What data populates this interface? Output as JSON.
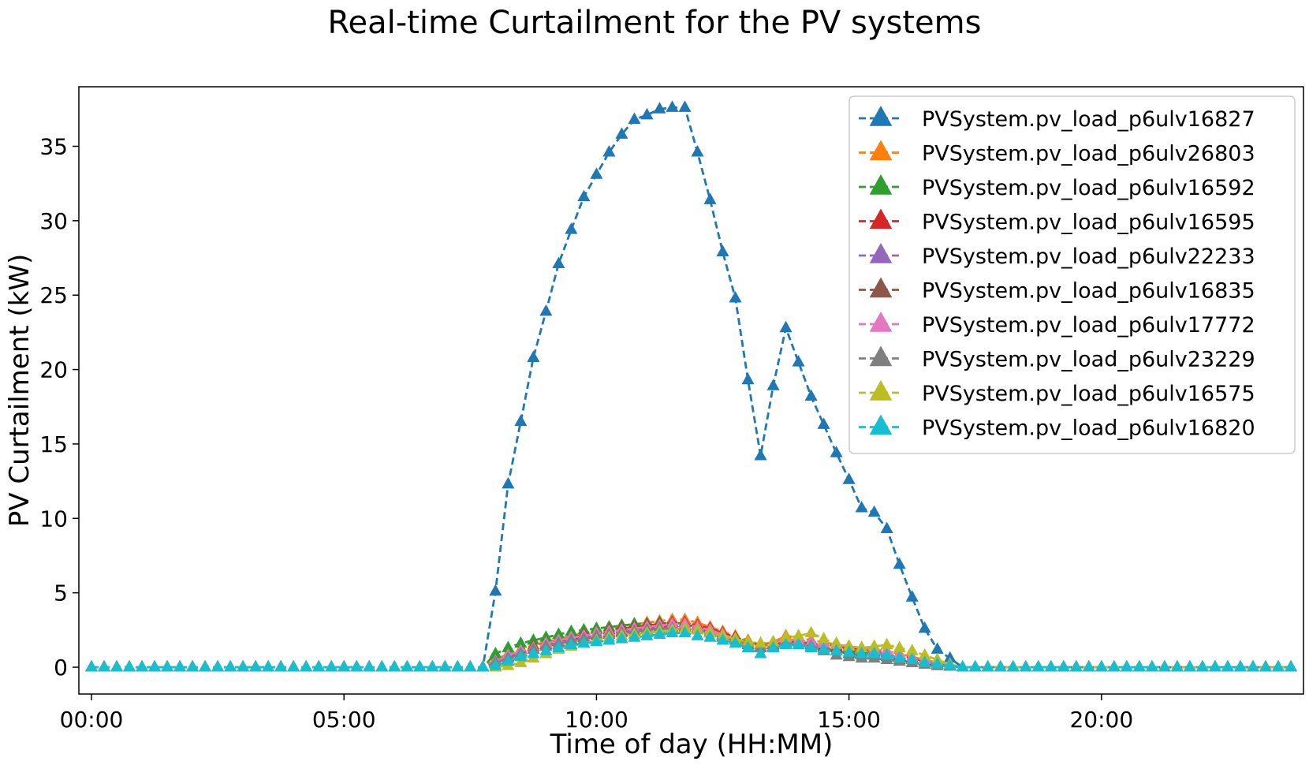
{
  "chart_data": {
    "type": "line",
    "title": "Real-time Curtailment for the PV systems",
    "xlabel": "Time of day (HH:MM)",
    "ylabel": "PV Curtailment (kW)",
    "xlim": [
      -0.25,
      24.0
    ],
    "ylim": [
      -1.8,
      39.0
    ],
    "x_interval_hours": 0.25,
    "x_count": 96,
    "xticks": [
      {
        "value": 0,
        "label": "00:00"
      },
      {
        "value": 5,
        "label": "05:00"
      },
      {
        "value": 10,
        "label": "10:00"
      },
      {
        "value": 15,
        "label": "15:00"
      },
      {
        "value": 20,
        "label": "20:00"
      }
    ],
    "yticks": [
      {
        "value": 0,
        "label": "0"
      },
      {
        "value": 5,
        "label": "5"
      },
      {
        "value": 10,
        "label": "10"
      },
      {
        "value": 15,
        "label": "15"
      },
      {
        "value": 20,
        "label": "20"
      },
      {
        "value": 25,
        "label": "25"
      },
      {
        "value": 30,
        "label": "30"
      },
      {
        "value": 35,
        "label": "35"
      }
    ],
    "grid": false,
    "legend_position": "top-right",
    "marker": "triangle-up",
    "line_style": "dashed",
    "series": [
      {
        "name": "PVSystem.pv_load_p6ulv16827",
        "color": "#1f77b4",
        "active_start_index": 31,
        "active_values": [
          0,
          5.1,
          12.3,
          16.5,
          20.8,
          23.9,
          27.1,
          29.4,
          31.6,
          33.1,
          34.6,
          35.8,
          36.8,
          37.1,
          37.5,
          37.6,
          37.6,
          34.6,
          31.4,
          27.9,
          24.8,
          19.3,
          14.2,
          18.9,
          22.8,
          20.5,
          18.2,
          16.3,
          14.4,
          12.6,
          10.7,
          10.4,
          9.3,
          6.9,
          4.7,
          2.6,
          1.2,
          0.6,
          0
        ]
      },
      {
        "name": "PVSystem.pv_load_p6ulv26803",
        "color": "#ff7f0e",
        "active_start_index": 31,
        "active_values": [
          0,
          0.5,
          0.9,
          1.2,
          1.5,
          1.7,
          1.9,
          2.1,
          2.3,
          2.5,
          2.6,
          2.8,
          2.9,
          3.0,
          3.1,
          3.2,
          3.2,
          3.0,
          2.7,
          2.4,
          2.1,
          1.8,
          1.5,
          1.7,
          2.1,
          2.0,
          1.8,
          1.7,
          1.5,
          1.4,
          1.3,
          1.2,
          1.1,
          0.9,
          0.7,
          0.5,
          0.3,
          0.1,
          0
        ]
      },
      {
        "name": "PVSystem.pv_load_p6ulv16592",
        "color": "#2ca02c",
        "active_start_index": 31,
        "active_values": [
          0,
          0.9,
          1.3,
          1.6,
          1.8,
          2.0,
          2.2,
          2.4,
          2.5,
          2.6,
          2.7,
          2.8,
          2.9,
          2.9,
          3.0,
          3.0,
          2.9,
          2.7,
          2.5,
          2.2,
          2.0,
          1.7,
          1.5,
          1.6,
          1.8,
          1.7,
          1.5,
          1.3,
          1.1,
          0.9,
          0.8,
          0.8,
          0.7,
          0.5,
          0.3,
          0.2,
          0.1,
          0.05,
          0
        ]
      },
      {
        "name": "PVSystem.pv_load_p6ulv16595",
        "color": "#d62728",
        "active_start_index": 31,
        "active_values": [
          0,
          0.4,
          0.8,
          1.1,
          1.4,
          1.6,
          1.8,
          2.0,
          2.2,
          2.3,
          2.5,
          2.6,
          2.7,
          2.8,
          2.9,
          3.0,
          3.0,
          2.8,
          2.6,
          2.3,
          2.0,
          1.7,
          1.4,
          1.6,
          1.9,
          1.8,
          1.7,
          1.6,
          1.4,
          1.3,
          1.2,
          1.1,
          1.0,
          0.8,
          0.6,
          0.4,
          0.3,
          0.1,
          0
        ]
      },
      {
        "name": "PVSystem.pv_load_p6ulv22233",
        "color": "#9467bd",
        "active_start_index": 31,
        "active_values": [
          0,
          0.4,
          0.7,
          1.0,
          1.3,
          1.5,
          1.7,
          1.9,
          2.1,
          2.2,
          2.4,
          2.5,
          2.6,
          2.7,
          2.8,
          2.8,
          2.8,
          2.7,
          2.4,
          2.2,
          1.9,
          1.6,
          1.4,
          1.5,
          1.8,
          1.7,
          1.6,
          1.5,
          1.3,
          1.2,
          1.1,
          1.0,
          0.9,
          0.7,
          0.5,
          0.4,
          0.2,
          0.1,
          0
        ]
      },
      {
        "name": "PVSystem.pv_load_p6ulv16835",
        "color": "#8c564b",
        "active_start_index": 31,
        "active_values": [
          0,
          0.4,
          0.7,
          1.0,
          1.2,
          1.5,
          1.7,
          1.8,
          2.0,
          2.2,
          2.3,
          2.4,
          2.5,
          2.6,
          2.7,
          2.7,
          2.7,
          2.6,
          2.3,
          2.1,
          1.8,
          1.6,
          1.3,
          1.5,
          1.7,
          1.7,
          1.6,
          1.4,
          1.3,
          1.2,
          1.0,
          0.9,
          0.8,
          0.7,
          0.5,
          0.3,
          0.2,
          0.1,
          0
        ]
      },
      {
        "name": "PVSystem.pv_load_p6ulv17772",
        "color": "#e377c2",
        "active_start_index": 31,
        "active_values": [
          0,
          0.4,
          0.8,
          1.1,
          1.3,
          1.6,
          1.8,
          2.0,
          2.1,
          2.3,
          2.4,
          2.5,
          2.6,
          2.7,
          2.8,
          2.9,
          2.9,
          2.7,
          2.5,
          2.2,
          1.9,
          1.6,
          1.4,
          1.6,
          1.9,
          1.8,
          1.7,
          1.6,
          1.5,
          1.4,
          1.3,
          1.2,
          1.1,
          0.9,
          0.7,
          0.5,
          0.3,
          0.1,
          0
        ]
      },
      {
        "name": "PVSystem.pv_load_p6ulv23229",
        "color": "#7f7f7f",
        "active_start_index": 31,
        "active_values": [
          0,
          0.3,
          0.6,
          0.9,
          1.2,
          1.4,
          1.6,
          1.8,
          1.9,
          2.1,
          2.2,
          2.3,
          2.4,
          2.5,
          2.6,
          2.6,
          2.6,
          2.5,
          2.3,
          2.0,
          1.8,
          1.5,
          1.3,
          1.4,
          1.6,
          1.5,
          1.4,
          1.1,
          0.8,
          0.7,
          0.6,
          0.6,
          0.5,
          0.4,
          0.3,
          0.2,
          0.1,
          0.05,
          0
        ]
      },
      {
        "name": "PVSystem.pv_load_p6ulv16575",
        "color": "#bcbd22",
        "active_start_index": 31,
        "active_values": [
          0,
          0.0,
          0.1,
          0.3,
          0.6,
          0.9,
          1.2,
          1.4,
          1.6,
          1.8,
          2.0,
          2.1,
          2.2,
          2.3,
          2.4,
          2.5,
          2.6,
          2.5,
          2.3,
          2.1,
          1.9,
          1.7,
          1.6,
          1.7,
          2.0,
          2.1,
          2.3,
          1.9,
          1.6,
          1.4,
          1.3,
          1.4,
          1.5,
          1.3,
          1.1,
          0.8,
          0.5,
          0.2,
          0
        ]
      },
      {
        "name": "PVSystem.pv_load_p6ulv16820",
        "color": "#17becf",
        "active_start_index": 31,
        "active_values": [
          0,
          0.1,
          0.4,
          0.7,
          0.9,
          1.1,
          1.3,
          1.5,
          1.6,
          1.7,
          1.8,
          1.9,
          2.0,
          2.1,
          2.2,
          2.3,
          2.3,
          2.1,
          2.0,
          1.8,
          1.6,
          1.3,
          0.9,
          1.3,
          1.5,
          1.5,
          1.3,
          1.2,
          1.1,
          1.0,
          0.9,
          0.9,
          0.8,
          0.6,
          0.5,
          0.3,
          0.2,
          0.1,
          0
        ]
      }
    ]
  }
}
